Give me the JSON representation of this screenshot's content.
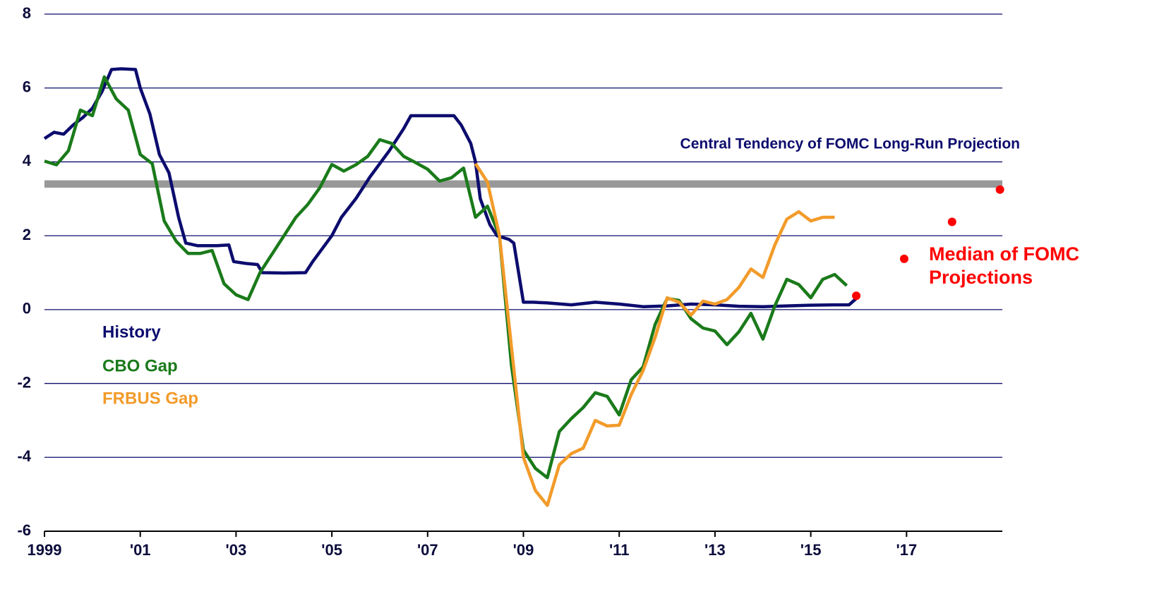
{
  "chart_data": {
    "type": "line",
    "annotation": "Central Tendency of FOMC Long-Run Projection",
    "reference_band": {
      "range": [
        3.3,
        3.5
      ],
      "color": "#999999"
    },
    "xlim": [
      1999,
      2019
    ],
    "xticks": [
      1999,
      {
        "value": 2001,
        "label": "'01"
      },
      {
        "value": 2003,
        "label": "'03"
      },
      {
        "value": 2005,
        "label": "'05"
      },
      {
        "value": 2007,
        "label": "'07"
      },
      {
        "value": 2009,
        "label": "'09"
      },
      {
        "value": 2011,
        "label": "'11"
      },
      {
        "value": 2013,
        "label": "'13"
      },
      {
        "value": 2015,
        "label": "'15"
      },
      {
        "value": 2017,
        "label": "'17"
      }
    ],
    "ylim": [
      -6,
      8
    ],
    "yticks": [
      -6,
      -4,
      -2,
      0,
      2,
      4,
      6,
      8
    ],
    "grid": true,
    "series": [
      {
        "name": "History",
        "color": "#0c0c6e",
        "x": [
          1999.0,
          1999.2,
          1999.4,
          1999.6,
          1999.8,
          2000.0,
          2000.2,
          2000.4,
          2000.6,
          2000.9,
          2001.0,
          2001.2,
          2001.4,
          2001.6,
          2001.8,
          2001.95,
          2002.2,
          2002.6,
          2002.85,
          2002.95,
          2003.2,
          2003.45,
          2003.55,
          2004.0,
          2004.45,
          2004.6,
          2005.0,
          2005.2,
          2005.5,
          2005.8,
          2006.2,
          2006.5,
          2006.65,
          2007.0,
          2007.55,
          2007.7,
          2007.9,
          2008.0,
          2008.1,
          2008.3,
          2008.45,
          2008.7,
          2008.8,
          2008.9,
          2009.0,
          2009.2,
          2009.5,
          2010.0,
          2010.5,
          2011.0,
          2011.5,
          2012.0,
          2012.5,
          2013.0,
          2013.5,
          2014.0,
          2014.5,
          2015.0,
          2015.5,
          2015.8,
          2015.95
        ],
        "values": [
          4.63,
          4.8,
          4.75,
          5.0,
          5.2,
          5.45,
          5.9,
          6.5,
          6.52,
          6.5,
          6.0,
          5.3,
          4.2,
          3.7,
          2.5,
          1.8,
          1.73,
          1.73,
          1.75,
          1.3,
          1.25,
          1.22,
          1.0,
          0.99,
          1.0,
          1.3,
          2.0,
          2.5,
          3.0,
          3.6,
          4.3,
          4.9,
          5.25,
          5.25,
          5.25,
          5.0,
          4.5,
          4.0,
          3.0,
          2.3,
          2.0,
          1.9,
          1.8,
          1.0,
          0.2,
          0.2,
          0.18,
          0.13,
          0.2,
          0.15,
          0.08,
          0.1,
          0.15,
          0.13,
          0.09,
          0.08,
          0.1,
          0.12,
          0.13,
          0.13,
          0.3
        ]
      },
      {
        "name": "CBO Gap",
        "color": "#1a7a1a",
        "x": [
          1999.0,
          1999.25,
          1999.5,
          1999.75,
          2000.0,
          2000.25,
          2000.5,
          2000.75,
          2001.0,
          2001.25,
          2001.5,
          2001.75,
          2002.0,
          2002.25,
          2002.5,
          2002.75,
          2003.0,
          2003.25,
          2003.5,
          2003.75,
          2004.0,
          2004.25,
          2004.5,
          2004.75,
          2005.0,
          2005.25,
          2005.5,
          2005.75,
          2006.0,
          2006.25,
          2006.5,
          2006.75,
          2007.0,
          2007.25,
          2007.5,
          2007.75,
          2008.0,
          2008.25,
          2008.5,
          2008.75,
          2009.0,
          2009.25,
          2009.5,
          2009.75,
          2010.0,
          2010.25,
          2010.5,
          2010.75,
          2011.0,
          2011.25,
          2011.5,
          2011.75,
          2012.0,
          2012.25,
          2012.5,
          2012.75,
          2013.0,
          2013.25,
          2013.5,
          2013.75,
          2014.0,
          2014.25,
          2014.5,
          2014.75,
          2015.0,
          2015.25,
          2015.5,
          2015.75
        ],
        "values": [
          4.02,
          3.92,
          4.3,
          5.4,
          5.25,
          6.3,
          5.7,
          5.4,
          4.2,
          3.95,
          2.4,
          1.85,
          1.52,
          1.52,
          1.6,
          0.7,
          0.4,
          0.27,
          1.0,
          1.5,
          2.0,
          2.5,
          2.85,
          3.3,
          3.93,
          3.75,
          3.92,
          4.15,
          4.6,
          4.5,
          4.15,
          3.98,
          3.8,
          3.48,
          3.57,
          3.83,
          2.5,
          2.8,
          2.0,
          -1.5,
          -3.8,
          -4.3,
          -4.55,
          -3.3,
          -2.95,
          -2.65,
          -2.25,
          -2.35,
          -2.85,
          -1.9,
          -1.55,
          -0.4,
          0.3,
          0.25,
          -0.25,
          -0.5,
          -0.58,
          -0.95,
          -0.6,
          -0.1,
          -0.8,
          0.1,
          0.82,
          0.68,
          0.32,
          0.82,
          0.95,
          0.65
        ]
      },
      {
        "name": "FRBUS Gap",
        "color": "#f29b2a",
        "x": [
          2008.0,
          2008.25,
          2008.5,
          2008.75,
          2009.0,
          2009.25,
          2009.5,
          2009.75,
          2010.0,
          2010.25,
          2010.5,
          2010.75,
          2011.0,
          2011.25,
          2011.5,
          2011.75,
          2012.0,
          2012.25,
          2012.5,
          2012.75,
          2013.0,
          2013.25,
          2013.5,
          2013.75,
          2014.0,
          2014.25,
          2014.5,
          2014.75,
          2015.0,
          2015.25,
          2015.5
        ],
        "values": [
          3.95,
          3.45,
          2.0,
          -1.0,
          -4.0,
          -4.9,
          -5.3,
          -4.2,
          -3.9,
          -3.75,
          -3.0,
          -3.15,
          -3.13,
          -2.3,
          -1.65,
          -0.75,
          0.32,
          0.2,
          -0.15,
          0.23,
          0.15,
          0.27,
          0.6,
          1.1,
          0.87,
          1.75,
          2.45,
          2.65,
          2.4,
          2.5,
          2.5
        ]
      },
      {
        "name": "Median of FOMC Projections",
        "color": "#ff0000",
        "kind": "scatter",
        "x": [
          2015.95,
          2016.95,
          2017.95,
          2018.95
        ],
        "values": [
          0.375,
          1.375,
          2.375,
          3.25
        ]
      }
    ]
  }
}
